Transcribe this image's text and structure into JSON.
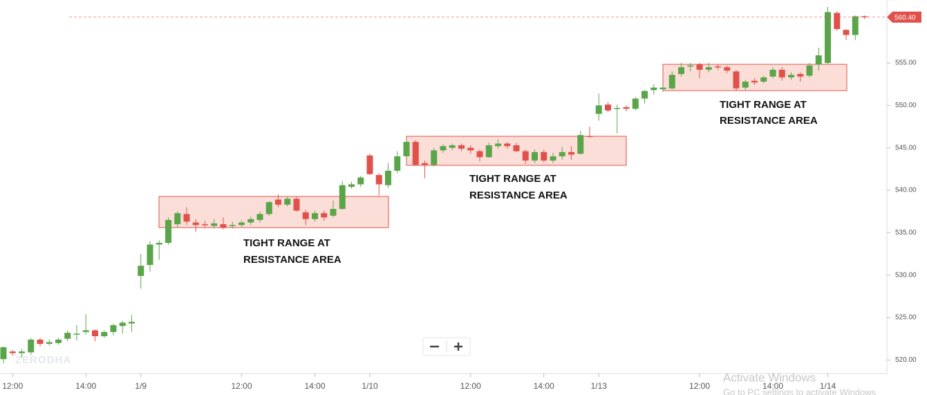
{
  "chart_data": {
    "type": "candlestick",
    "categories": [
      null,
      "12:00",
      null,
      null,
      null,
      null,
      null,
      null,
      null,
      "14:00",
      null,
      null,
      null,
      null,
      null,
      "1/9",
      null,
      null,
      null,
      null,
      null,
      null,
      null,
      null,
      null,
      null,
      "12:00",
      null,
      null,
      null,
      null,
      null,
      null,
      null,
      "14:00",
      null,
      null,
      null,
      null,
      null,
      "1/10",
      null,
      null,
      null,
      null,
      null,
      null,
      null,
      null,
      null,
      null,
      "12:00",
      null,
      null,
      null,
      null,
      null,
      null,
      null,
      "14:00",
      null,
      null,
      null,
      null,
      null,
      "1/13",
      null,
      null,
      null,
      null,
      null,
      null,
      null,
      null,
      null,
      null,
      "12:00",
      null,
      null,
      null,
      null,
      null,
      null,
      null,
      "14:00",
      null,
      null,
      null,
      null,
      null,
      "1/14",
      null,
      null,
      null,
      null
    ],
    "open": [
      520.1,
      521.0,
      520.8,
      520.9,
      522.4,
      521.9,
      522.0,
      522.5,
      523.0,
      523.3,
      523.5,
      522.8,
      523.3,
      524.0,
      524.3,
      529.9,
      531.2,
      533.6,
      533.8,
      536.0,
      537.2,
      536.2,
      536.0,
      535.8,
      536.0,
      535.8,
      535.9,
      536.2,
      536.5,
      537.2,
      538.9,
      538.3,
      539.0,
      537.4,
      536.6,
      537.3,
      537.0,
      537.8,
      540.4,
      540.7,
      544.1,
      541.8,
      540.6,
      542.3,
      544.0,
      545.7,
      543.2,
      543.0,
      544.7,
      545.0,
      545.3,
      545.0,
      544.6,
      543.9,
      545.2,
      545.5,
      545.3,
      544.6,
      543.5,
      544.5,
      543.5,
      544.0,
      544.5,
      544.3,
      546.4,
      549.0,
      550.1,
      549.6,
      549.8,
      549.6,
      550.8,
      551.8,
      551.9,
      552.0,
      553.7,
      554.6,
      554.8,
      554.2,
      554.6,
      554.5,
      554.0,
      552.1,
      552.9,
      552.8,
      553.4,
      554.2,
      553.3,
      553.7,
      553.5,
      554.8,
      555.0,
      560.9,
      558.9,
      558.3,
      560.5
    ],
    "high": [
      521.6,
      521.2,
      521.3,
      522.6,
      522.6,
      522.4,
      522.6,
      523.5,
      524.1,
      525.4,
      523.6,
      523.5,
      524.3,
      524.6,
      525.3,
      532.5,
      534.0,
      534.1,
      536.8,
      537.5,
      538.0,
      536.6,
      536.4,
      536.6,
      536.8,
      536.3,
      536.5,
      536.9,
      537.5,
      538.7,
      539.5,
      539.3,
      539.2,
      537.7,
      537.6,
      537.6,
      538.8,
      541.1,
      541.0,
      541.7,
      544.3,
      542.0,
      543.2,
      544.6,
      546.0,
      545.9,
      543.5,
      545.0,
      545.4,
      545.5,
      545.5,
      545.3,
      544.8,
      545.6,
      546.0,
      545.7,
      545.6,
      544.8,
      544.8,
      544.8,
      544.4,
      545.1,
      545.2,
      547.0,
      547.5,
      551.4,
      550.4,
      550.1,
      550.0,
      551.0,
      551.8,
      552.5,
      552.3,
      554.0,
      555.0,
      555.0,
      555.0,
      555.0,
      554.8,
      554.7,
      554.2,
      553.0,
      553.2,
      553.5,
      554.5,
      554.5,
      553.9,
      553.9,
      555.0,
      556.8,
      561.6,
      561.1,
      559.0,
      560.6,
      560.6
    ],
    "low": [
      519.6,
      520.5,
      520.3,
      520.6,
      521.6,
      521.7,
      521.8,
      522.2,
      522.3,
      523.0,
      522.2,
      522.6,
      522.9,
      523.1,
      523.3,
      528.4,
      530.4,
      531.8,
      533.6,
      535.6,
      535.9,
      535.1,
      535.6,
      535.5,
      535.4,
      535.5,
      535.7,
      535.9,
      536.2,
      537.0,
      538.0,
      538.1,
      537.5,
      535.9,
      536.3,
      536.4,
      536.8,
      537.7,
      540.2,
      540.4,
      541.8,
      539.4,
      540.3,
      542.0,
      543.8,
      542.9,
      541.4,
      542.8,
      544.4,
      544.7,
      544.6,
      544.3,
      543.4,
      543.8,
      544.9,
      544.9,
      544.5,
      543.1,
      543.2,
      543.3,
      543.2,
      543.6,
      543.6,
      544.2,
      546.2,
      548.2,
      549.2,
      546.7,
      549.3,
      549.4,
      550.2,
      551.3,
      551.6,
      551.9,
      553.4,
      554.0,
      553.2,
      553.9,
      554.2,
      553.8,
      551.7,
      551.8,
      552.4,
      552.6,
      553.2,
      552.9,
      553.0,
      552.8,
      553.3,
      554.1,
      554.9,
      558.8,
      557.7,
      557.7,
      560.2
    ],
    "close": [
      521.5,
      520.8,
      521.0,
      522.4,
      521.9,
      522.1,
      522.4,
      523.2,
      523.1,
      523.5,
      522.8,
      523.3,
      524.1,
      524.4,
      524.5,
      531.1,
      533.6,
      533.8,
      536.5,
      537.3,
      536.3,
      535.9,
      535.9,
      536.1,
      535.6,
      535.9,
      536.2,
      536.6,
      537.2,
      538.6,
      538.3,
      539.0,
      537.6,
      536.6,
      537.3,
      536.8,
      537.8,
      540.6,
      540.7,
      541.5,
      541.9,
      540.7,
      542.3,
      544.0,
      545.7,
      543.0,
      543.0,
      544.7,
      545.2,
      545.3,
      544.9,
      544.7,
      543.9,
      545.3,
      545.5,
      545.2,
      544.6,
      543.5,
      544.5,
      543.5,
      544.0,
      544.5,
      544.2,
      546.5,
      546.3,
      550.0,
      549.4,
      549.7,
      549.6,
      550.8,
      551.7,
      552.1,
      552.1,
      553.6,
      554.5,
      554.7,
      554.2,
      554.5,
      554.5,
      554.1,
      552.0,
      552.8,
      552.7,
      553.3,
      554.2,
      553.3,
      553.6,
      553.4,
      554.7,
      555.9,
      561.0,
      559.0,
      558.3,
      560.5,
      560.4
    ],
    "up_color": "#5aa54a",
    "down_color": "#e0514b",
    "ylim": [
      518.4,
      562.42
    ],
    "yticks": [
      {
        "value": 520,
        "label": "520.00"
      },
      {
        "value": 525,
        "label": "525.00"
      },
      {
        "value": 530,
        "label": "530.00"
      },
      {
        "value": 535,
        "label": "535.00"
      },
      {
        "value": 540,
        "label": "540.00"
      },
      {
        "value": 545,
        "label": "545.00"
      },
      {
        "value": 550,
        "label": "550.00"
      },
      {
        "value": 555,
        "label": "555.00"
      }
    ],
    "grid": false,
    "last_price": {
      "value": 560.4,
      "label": "560.40"
    },
    "annotations": [
      {
        "lines": [
          "TIGHT RANGE AT",
          "RESISTANCE AREA"
        ]
      },
      {
        "lines": [
          "TIGHT RANGE AT",
          "RESISTANCE AREA"
        ]
      },
      {
        "lines": [
          "TIGHT RANGE AT",
          "RESISTANCE AREA"
        ]
      }
    ],
    "watermark": "ZERODHA"
  },
  "overlay": {
    "title": "Activate Windows",
    "subtitle": "Go to PC settings to activate Windows"
  }
}
